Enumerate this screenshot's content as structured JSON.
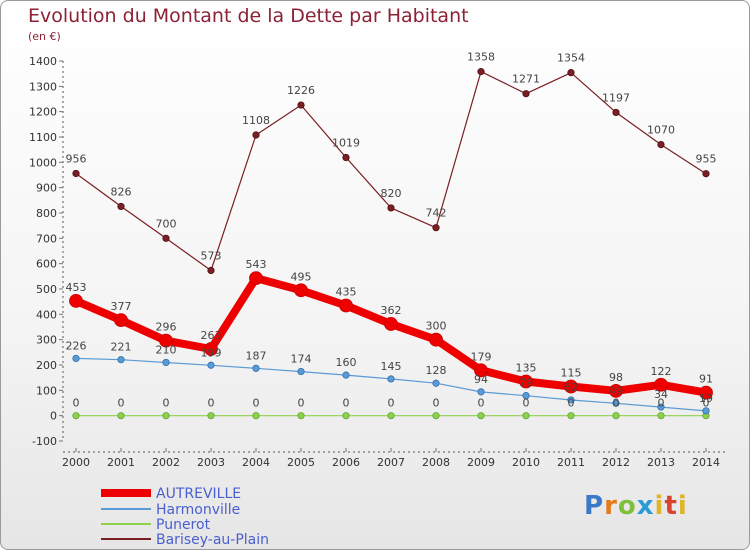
{
  "header": {
    "title": "Evolution du Montant de la Dette par Habitant",
    "subtitle": "(en €)"
  },
  "logo_text": "Proxiti",
  "chart_data": {
    "type": "line",
    "title": "Evolution du Montant de la Dette par Habitant",
    "subtitle": "(en €)",
    "x": [
      2000,
      2001,
      2002,
      2003,
      2004,
      2005,
      2006,
      2007,
      2008,
      2009,
      2010,
      2011,
      2012,
      2013,
      2014
    ],
    "ylim": [
      -100,
      1400
    ],
    "yticks": [
      -100,
      0,
      100,
      200,
      300,
      400,
      500,
      600,
      700,
      800,
      900,
      1000,
      1100,
      1200,
      1300,
      1400
    ],
    "grid": false,
    "legend_position": "bottom-left",
    "series": [
      {
        "name": "AUTREVILLE",
        "color": "#ee0000",
        "values": [
          453,
          377,
          296,
          263,
          543,
          495,
          435,
          362,
          300,
          179,
          135,
          115,
          98,
          122,
          91
        ],
        "labels": [
          "453",
          "377",
          "296",
          "263",
          "543",
          "495",
          "435",
          "362",
          "300",
          "179",
          "135",
          "115",
          "98",
          "122",
          "91"
        ]
      },
      {
        "name": "Harmonville",
        "color": "#5b9bd5",
        "values": [
          226,
          221,
          210,
          199,
          187,
          174,
          160,
          145,
          128,
          94,
          79,
          62,
          49,
          34,
          19
        ],
        "labels": [
          "226",
          "221",
          "210",
          "199",
          "187",
          "174",
          "160",
          "145",
          "128",
          "94",
          "79",
          "62",
          "49",
          "34",
          "19"
        ]
      },
      {
        "name": "Punerot",
        "color": "#8fd14f",
        "values": [
          0,
          0,
          0,
          0,
          0,
          0,
          0,
          0,
          0,
          0,
          0,
          0,
          0,
          0,
          0
        ],
        "labels": [
          "0",
          "0",
          "0",
          "0",
          "0",
          "0",
          "0",
          "0",
          "0",
          "0",
          "0",
          "0",
          "0",
          "0",
          "0"
        ]
      },
      {
        "name": "Barisey-au-Plain",
        "color": "#7a1f24",
        "values": [
          956,
          826,
          700,
          573,
          1108,
          1226,
          1019,
          820,
          742,
          1358,
          1271,
          1354,
          1197,
          1070,
          955
        ],
        "labels": [
          "956",
          "826",
          "700",
          "573",
          "1108",
          "1226",
          "1019",
          "820",
          "742",
          "1358",
          "1271",
          "1354",
          "1197",
          "1070",
          "955"
        ]
      }
    ]
  }
}
